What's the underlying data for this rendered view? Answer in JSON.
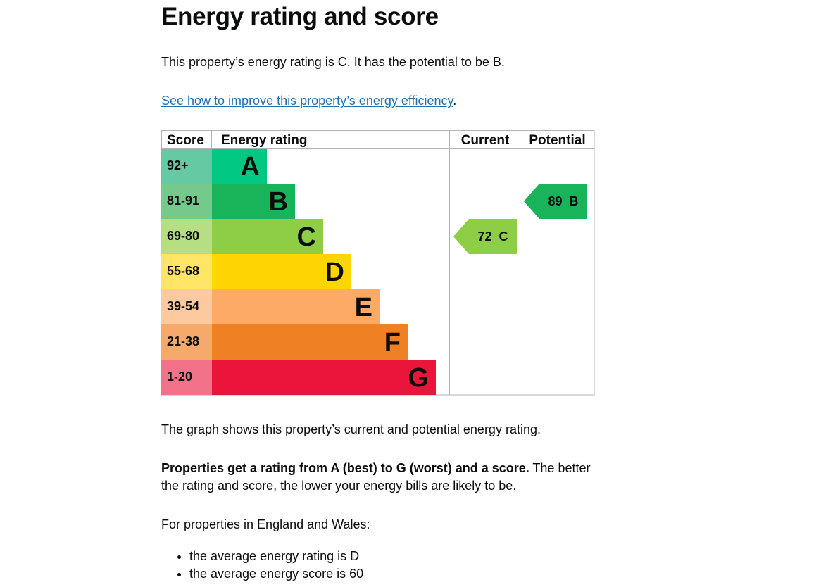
{
  "page": {
    "title": "Energy rating and score",
    "rating_sentence": "This property’s energy rating is C. It has the potential to be B.",
    "improve_link": "See how to improve this property’s energy efficiency",
    "improve_link_suffix": ".",
    "graph_caption": "The graph shows this property’s current and potential energy rating.",
    "rating_info_bold": "Properties get a rating from A (best) to G (worst) and a score.",
    "rating_info_rest": " The better the rating and score, the lower your energy bills are likely to be.",
    "region_intro": "For properties in England and Wales:",
    "averages": [
      "the average energy rating is D",
      "the average energy score is 60"
    ]
  },
  "chart_data": {
    "type": "bar",
    "headers": {
      "score": "Score",
      "rating": "Energy rating",
      "current": "Current",
      "potential": "Potential"
    },
    "bands": [
      {
        "letter": "A",
        "score_range": "92+",
        "band_color": "#00c781",
        "score_bg": "#65c9a4"
      },
      {
        "letter": "B",
        "score_range": "81-91",
        "band_color": "#19b459",
        "score_bg": "#74c98b"
      },
      {
        "letter": "C",
        "score_range": "69-80",
        "band_color": "#8dce46",
        "score_bg": "#b6df84"
      },
      {
        "letter": "D",
        "score_range": "55-68",
        "band_color": "#ffd500",
        "score_bg": "#ffe566"
      },
      {
        "letter": "E",
        "score_range": "39-54",
        "band_color": "#fcaa65",
        "score_bg": "#fdcaa0"
      },
      {
        "letter": "F",
        "score_range": "21-38",
        "band_color": "#ef8023",
        "score_bg": "#f5aa6c"
      },
      {
        "letter": "G",
        "score_range": "1-20",
        "band_color": "#e9153b",
        "score_bg": "#f27389"
      }
    ],
    "current": {
      "score": 72,
      "rating": "C",
      "label": "72  C",
      "color": "#8dce46"
    },
    "potential": {
      "score": 89,
      "rating": "B",
      "label": "89  B",
      "color": "#19b459"
    }
  },
  "colors": {
    "link": "#1d70b8",
    "text": "#0b0c0c",
    "grid": "#b1b4b6"
  }
}
